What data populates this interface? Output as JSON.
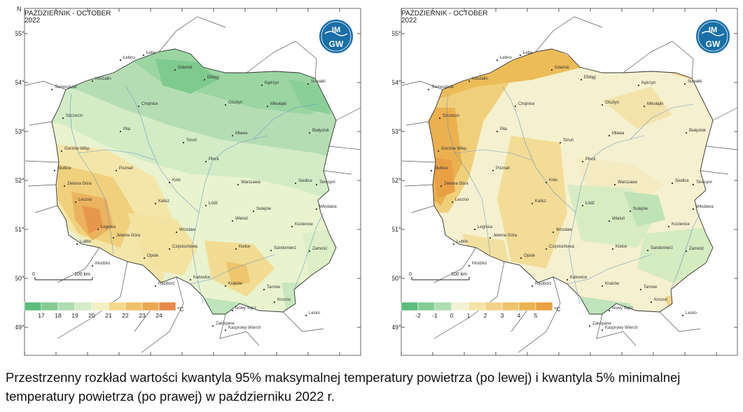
{
  "maps": [
    {
      "title_line1": "PAŹDZIERNIK - OCTOBER",
      "title_line2": "2022",
      "scale_zero": "0",
      "scale_label": "100 km",
      "legend": {
        "unit": "°C",
        "values": [
          "17",
          "18",
          "19",
          "20",
          "21",
          "22",
          "23",
          "24"
        ],
        "colors": [
          "#5cbd7b",
          "#85cc93",
          "#b0dcb2",
          "#d4ecc8",
          "#f3f0c3",
          "#f2d98a",
          "#eec166",
          "#eaa852",
          "#e8894a"
        ]
      }
    },
    {
      "title_line1": "PAŹDZIERNIK - OCTOBER",
      "title_line2": "2022",
      "scale_zero": "0",
      "scale_label": "100 km",
      "legend": {
        "unit": "°C",
        "values": [
          "-2",
          "-1",
          "0",
          "1",
          "2",
          "3",
          "4",
          "5"
        ],
        "colors": [
          "#5cbd7b",
          "#85cc93",
          "#b0dcb2",
          "#f3f1d4",
          "#f3e3a6",
          "#f1d38a",
          "#eec46c",
          "#ebb351",
          "#e8a23e"
        ]
      }
    }
  ],
  "axes": {
    "lat": [
      "55°",
      "54°",
      "53°",
      "52°",
      "51°",
      "50°",
      "49°"
    ],
    "lon": [
      "14°",
      "15°",
      "16°",
      "17°",
      "18°",
      "19°",
      "20°",
      "21°",
      "22°",
      "23°",
      "24°"
    ],
    "north": "N",
    "east": "E"
  },
  "logo": {
    "top": "IM",
    "bottom": "GW"
  },
  "cities": [
    "Łeba",
    "Łebno",
    "Gdańsk",
    "Koszalin",
    "Elbląg",
    "Kętrzyn",
    "Suwałki",
    "Świnoujście",
    "Chojnice",
    "Olsztyn",
    "Mikołajki",
    "Szczecin",
    "Piła",
    "Toruń",
    "Mława",
    "Białystok",
    "Gorzów Wlkp.",
    "Płock",
    "Słubice",
    "Poznań",
    "Zielona Góra",
    "Koło",
    "Warszawa",
    "Siedlce",
    "Terespol",
    "Kalisz",
    "Łódź",
    "Włodawa",
    "Leszno",
    "Legnica",
    "Wieluń",
    "Sulejów",
    "Kozienice",
    "Lublin",
    "Jelenia Góra",
    "Wrocław",
    "Częstochowa",
    "Kielce",
    "Sandomierz",
    "Zamość",
    "Kłodzko",
    "Opole",
    "Racibórz",
    "Katowice",
    "Kraków",
    "Tarnów",
    "Krosno",
    "Lesko",
    "Nowy Sącz",
    "Zakopane",
    "Kasprowy Wierch"
  ],
  "caption": "Przestrzenny rozkład wartości kwantyla 95% maksymalnej temperatury powietrza (po lewej) i kwantyla 5% minimalnej temperatury powietrza (po prawej) w październiku 2022 r."
}
